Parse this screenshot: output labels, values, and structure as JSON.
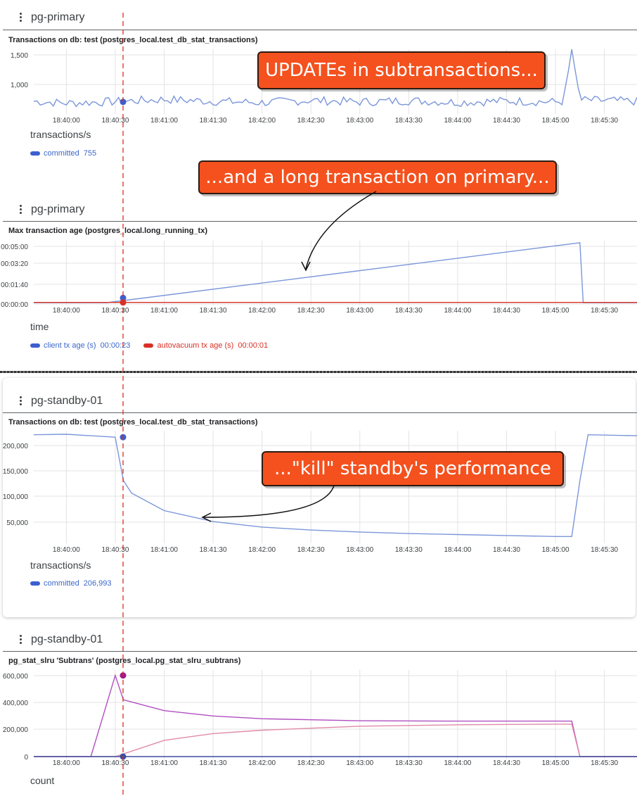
{
  "time_ticks": [
    "18:40:00",
    "18:40:30",
    "18:41:00",
    "18:41:30",
    "18:42:00",
    "18:42:30",
    "18:43:00",
    "18:43:30",
    "18:44:00",
    "18:44:30",
    "18:45:00",
    "18:45:30"
  ],
  "panels": [
    {
      "host": "pg-primary",
      "title": "Transactions on db: test (postgres_local.test_db_stat_transactions)",
      "unit": "transactions/s",
      "legend": [
        {
          "label": "committed",
          "value": "755",
          "color": "#3c5fcf"
        }
      ]
    },
    {
      "host": "pg-primary",
      "title": "Max transaction age (postgres_local.long_running_tx)",
      "unit": "time",
      "legend": [
        {
          "label": "client tx age (s)",
          "value": "00:00:23",
          "color": "#3c5fcf"
        },
        {
          "label": "autovacuum tx age (s)",
          "value": "00:00:01",
          "color": "#d93025"
        }
      ]
    },
    {
      "host": "pg-standby-01",
      "title": "Transactions on db: test (postgres_local.test_db_stat_transactions)",
      "unit": "transactions/s",
      "legend": [
        {
          "label": "committed",
          "value": "206,993",
          "color": "#3c5fcf"
        }
      ]
    },
    {
      "host": "pg-standby-01",
      "title": "pg_stat_slru 'Subtrans' (postgres_local.pg_stat_slru_subtrans)",
      "unit": "count",
      "legend": []
    }
  ],
  "callouts": {
    "c1": "UPDATEs in subtransactions...",
    "c2": "...and a long transaction on primary...",
    "c3": "...\"kill\" standby's performance"
  },
  "chart_data": [
    {
      "type": "line",
      "title": "Transactions on db: test (postgres_local.test_db_stat_transactions)",
      "ylabel": "transactions/s",
      "x_range": [
        "18:39:40",
        "18:45:50"
      ],
      "ylim": [
        600,
        1600
      ],
      "yticks": [
        "1,500",
        "1,000"
      ],
      "grid": true,
      "series": [
        {
          "name": "committed",
          "color": "#7b96d9",
          "x": [
            "18:39:40",
            "18:40:00",
            "18:40:30",
            "18:41:00",
            "18:41:30",
            "18:42:00",
            "18:42:30",
            "18:43:00",
            "18:43:30",
            "18:44:00",
            "18:44:30",
            "18:45:00",
            "18:45:05",
            "18:45:10",
            "18:45:15",
            "18:45:50"
          ],
          "values": [
            760,
            730,
            755,
            790,
            760,
            740,
            775,
            750,
            770,
            745,
            765,
            750,
            760,
            1600,
            780,
            760
          ]
        }
      ]
    },
    {
      "type": "line",
      "title": "Max transaction age (postgres_local.long_running_tx)",
      "ylabel": "time",
      "x_range": [
        "18:39:40",
        "18:45:50"
      ],
      "ylim": [
        0,
        300
      ],
      "yticks": [
        "00:05:00",
        "00:03:20",
        "00:01:40",
        "00:00:00"
      ],
      "grid": true,
      "series": [
        {
          "name": "client tx age (s)",
          "color": "#7b96d9",
          "x": [
            "18:39:40",
            "18:40:25",
            "18:45:15",
            "18:45:17",
            "18:45:50"
          ],
          "values": [
            0,
            0,
            290,
            0,
            0
          ]
        },
        {
          "name": "autovacuum tx age (s)",
          "color": "#d93025",
          "x": [
            "18:39:40",
            "18:45:50"
          ],
          "values": [
            1,
            1
          ]
        }
      ]
    },
    {
      "type": "line",
      "title": "Transactions on db: test (postgres_local.test_db_stat_transactions)",
      "ylabel": "transactions/s",
      "x_range": [
        "18:39:40",
        "18:45:50"
      ],
      "ylim": [
        0,
        220000
      ],
      "yticks": [
        "200,000",
        "150,000",
        "100,000",
        "50,000"
      ],
      "grid": true,
      "series": [
        {
          "name": "committed",
          "color": "#7b96d9",
          "x": [
            "18:39:40",
            "18:40:00",
            "18:40:30",
            "18:40:35",
            "18:40:40",
            "18:41:00",
            "18:41:30",
            "18:42:00",
            "18:42:30",
            "18:43:00",
            "18:43:30",
            "18:44:00",
            "18:44:30",
            "18:45:00",
            "18:45:10",
            "18:45:15",
            "18:45:20",
            "18:45:50"
          ],
          "values": [
            212000,
            213000,
            207000,
            120000,
            95000,
            60000,
            38000,
            27000,
            21000,
            17000,
            14000,
            12000,
            10000,
            8000,
            8000,
            120000,
            212000,
            210000
          ]
        }
      ]
    },
    {
      "type": "line",
      "title": "pg_stat_slru 'Subtrans' (postgres_local.pg_stat_slru_subtrans)",
      "ylabel": "count",
      "x_range": [
        "18:39:40",
        "18:45:50"
      ],
      "ylim": [
        0,
        640000
      ],
      "yticks": [
        "600,000",
        "400,000",
        "200,000",
        "0"
      ],
      "grid": true,
      "series": [
        {
          "name": "",
          "color": "#b04fc0",
          "x": [
            "18:39:40",
            "18:40:15",
            "18:40:20",
            "18:40:30",
            "18:40:35",
            "18:41:00",
            "18:41:30",
            "18:42:00",
            "18:43:00",
            "18:44:00",
            "18:45:00",
            "18:45:10",
            "18:45:15",
            "18:45:50"
          ],
          "values": [
            0,
            0,
            200000,
            600000,
            420000,
            340000,
            300000,
            280000,
            265000,
            262000,
            262000,
            262000,
            0,
            0
          ]
        },
        {
          "name": "",
          "color": "#e08aa8",
          "x": [
            "18:39:40",
            "18:40:30",
            "18:41:00",
            "18:41:30",
            "18:42:00",
            "18:43:00",
            "18:44:00",
            "18:45:00",
            "18:45:10",
            "18:45:15",
            "18:45:50"
          ],
          "values": [
            0,
            0,
            120000,
            170000,
            195000,
            225000,
            235000,
            240000,
            240000,
            0,
            0
          ]
        },
        {
          "name": "",
          "color": "#3c4fa0",
          "x": [
            "18:39:40",
            "18:45:50"
          ],
          "values": [
            0,
            0
          ]
        }
      ]
    }
  ]
}
